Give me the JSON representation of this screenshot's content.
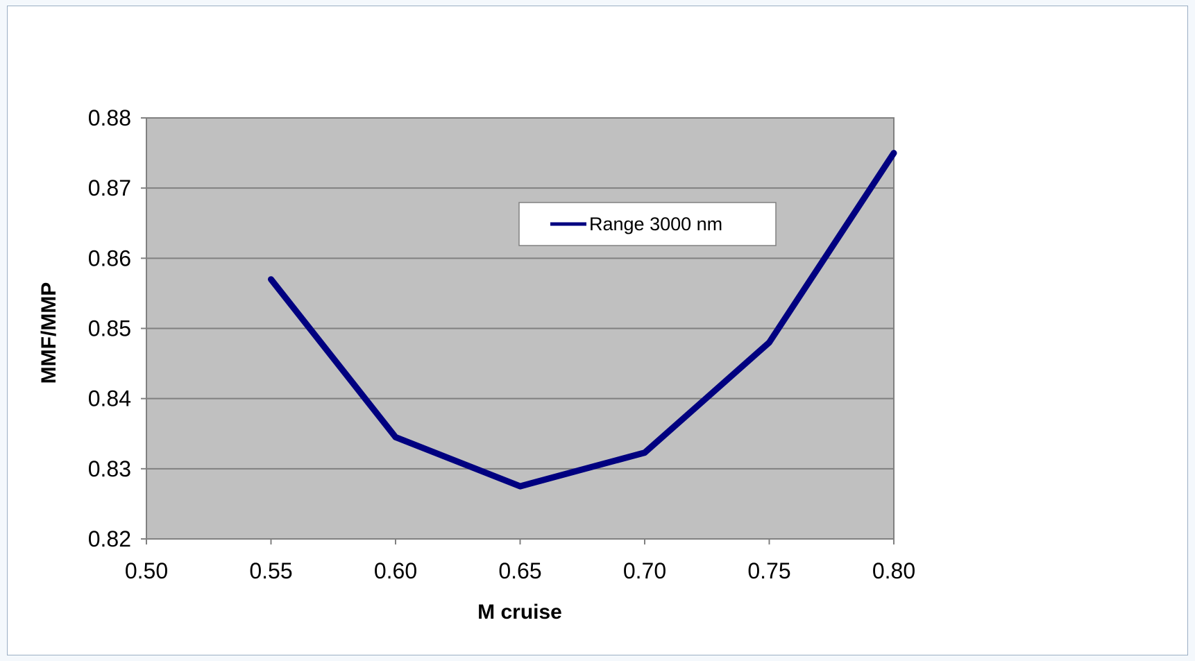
{
  "chart_data": {
    "type": "line",
    "title": "",
    "xlabel": "M cruise",
    "ylabel": "MMF/MMP",
    "xlim": [
      0.5,
      0.8
    ],
    "ylim": [
      0.82,
      0.88
    ],
    "x_ticks": [
      "0.50",
      "0.55",
      "0.60",
      "0.65",
      "0.70",
      "0.75",
      "0.80"
    ],
    "y_ticks": [
      "0.82",
      "0.83",
      "0.84",
      "0.85",
      "0.86",
      "0.87",
      "0.88"
    ],
    "grid": "horizontal",
    "legend_position": "top-right",
    "series": [
      {
        "name": "Range 3000 nm",
        "color": "#000080",
        "x": [
          0.55,
          0.6,
          0.65,
          0.7,
          0.75,
          0.8
        ],
        "y": [
          0.857,
          0.8345,
          0.8275,
          0.8323,
          0.848,
          0.875
        ]
      }
    ],
    "colors": {
      "plot_background": "#c0c0c0",
      "gridline": "#808080",
      "line": "#000080"
    }
  }
}
